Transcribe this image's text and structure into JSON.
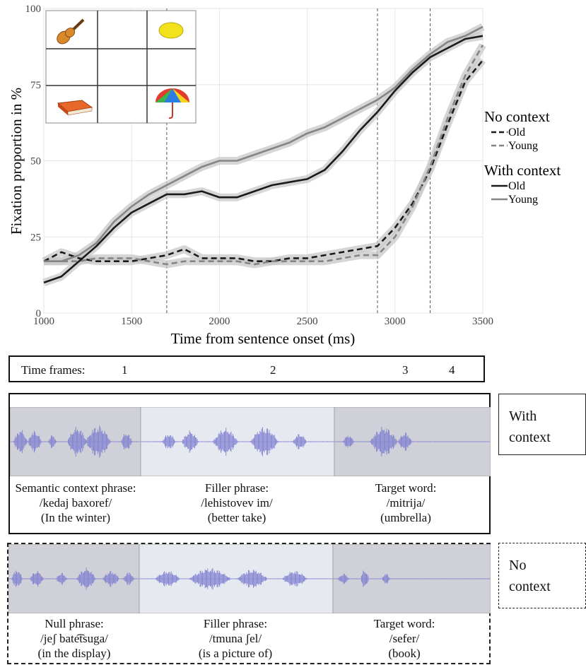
{
  "chart_data": {
    "type": "line",
    "xlabel": "Time from sentence onset (ms)",
    "ylabel": "Fixation proportion in %",
    "x": [
      1000,
      1100,
      1200,
      1300,
      1400,
      1500,
      1600,
      1700,
      1800,
      1900,
      2000,
      2100,
      2200,
      2300,
      2400,
      2500,
      2600,
      2700,
      2800,
      2900,
      3000,
      3100,
      3200,
      3300,
      3400,
      3500
    ],
    "series": [
      {
        "group": "No context",
        "name": "Old",
        "color": "#1a1a1a",
        "dashed": true,
        "values": [
          17,
          20,
          18,
          17,
          17,
          17,
          18,
          19,
          21,
          18,
          18,
          18,
          17,
          17,
          18,
          18,
          19,
          20,
          21,
          22,
          28,
          36,
          47,
          62,
          76,
          83
        ]
      },
      {
        "group": "No context",
        "name": "Young",
        "color": "#858585",
        "dashed": true,
        "values": [
          17,
          17,
          17,
          18,
          18,
          18,
          17,
          16,
          17,
          17,
          17,
          17,
          16,
          17,
          17,
          17,
          17,
          18,
          19,
          19,
          25,
          35,
          48,
          64,
          78,
          88
        ]
      },
      {
        "group": "With context",
        "name": "Old",
        "color": "#1a1a1a",
        "dashed": false,
        "values": [
          10,
          12,
          17,
          22,
          28,
          33,
          36,
          39,
          39,
          40,
          38,
          38,
          40,
          42,
          43,
          44,
          47,
          53,
          60,
          66,
          73,
          79,
          84,
          87,
          90,
          91
        ]
      },
      {
        "group": "With context",
        "name": "Young",
        "color": "#858585",
        "dashed": false,
        "values": [
          17,
          17,
          19,
          23,
          30,
          35,
          39,
          42,
          45,
          48,
          50,
          50,
          52,
          54,
          56,
          59,
          61,
          64,
          67,
          70,
          74,
          80,
          85,
          89,
          91,
          94
        ]
      }
    ],
    "vlines": [
      1700,
      2900,
      3200
    ],
    "xlim": [
      1000,
      3500
    ],
    "xticks": [
      1000,
      1500,
      2000,
      2500,
      3000,
      3500
    ],
    "ylim": [
      0,
      100
    ],
    "yticks": [
      0,
      25,
      50,
      75,
      100
    ],
    "grid": true
  },
  "timeframes": {
    "label": "Time frames:",
    "frames": [
      "1",
      "2",
      "3",
      "4"
    ]
  },
  "panels": [
    {
      "condition": "With context",
      "phrases": [
        {
          "title": "Semantic context phrase:",
          "transcription": "/kedaj baxoref/",
          "translation": "(In the winter)"
        },
        {
          "title": "Filler phrase:",
          "transcription": "/lehistovev im/",
          "translation": "(better take)"
        },
        {
          "title": "Target word:",
          "transcription": "/mitrija/",
          "translation": "(umbrella)"
        }
      ]
    },
    {
      "condition": "No context",
      "phrases": [
        {
          "title": "Null phrase:",
          "transcription": "/jeʃ bate͡tsuga/",
          "translation": "(in the display)"
        },
        {
          "title": "Filler phrase:",
          "transcription": "/tmuna ʃel/",
          "translation": "(is a picture of)"
        },
        {
          "title": "Target word:",
          "transcription": "/sefer/",
          "translation": "(book)"
        }
      ]
    }
  ]
}
